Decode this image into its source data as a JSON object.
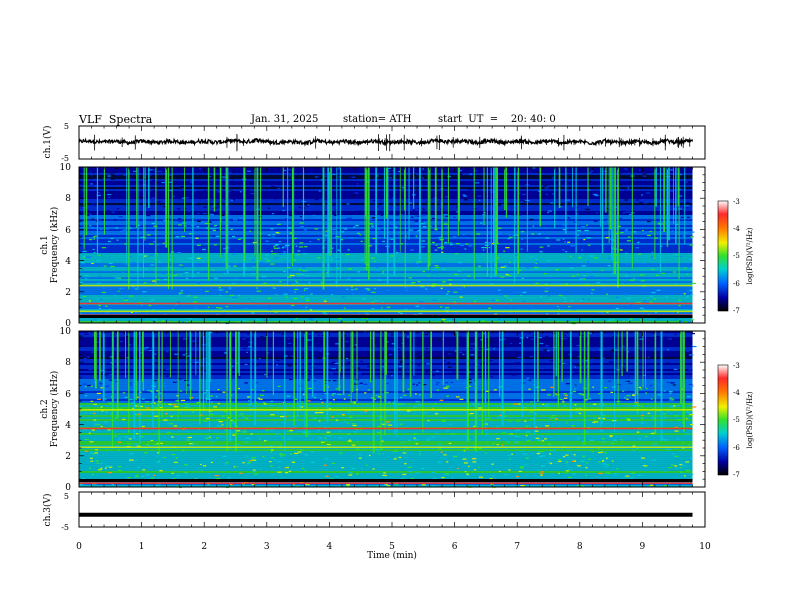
{
  "header": {
    "title": "VLF  Spectra",
    "date": "Jan. 31, 2025",
    "station": "station= ATH",
    "start_ut": "start  UT  =    20: 40: 0"
  },
  "colors": {
    "background": "#ffffff",
    "axis": "#000000",
    "trace": "#000000",
    "spectrogram_base": "#000a3a",
    "colormap": [
      "#ffffff",
      "#ff2a2a",
      "#ff7a00",
      "#f0f000",
      "#30e030",
      "#00d0d0",
      "#0060ff",
      "#0000a0",
      "#000000"
    ]
  },
  "chart_data": [
    {
      "id": "ch1-waveform",
      "type": "line",
      "ylabel": "ch.1(V)",
      "ylim": [
        -5,
        5
      ],
      "yticks": [
        "5",
        "-5"
      ],
      "xlim": [
        0,
        10
      ],
      "mean_value": 0.2,
      "noise_amplitude": 0.6
    },
    {
      "id": "ch1-spectrogram",
      "type": "heatmap",
      "ylabel_line1": "ch.1",
      "ylabel_line2": "Frequency  (kHz)",
      "ylim": [
        0,
        10
      ],
      "yticks": [
        "0",
        "2",
        "4",
        "6",
        "8",
        "10"
      ],
      "xlim": [
        0,
        10
      ],
      "colorbar": {
        "label": "log(PSD)(V²/Hz)",
        "range": [
          -7,
          -3
        ],
        "ticks": [
          "-3",
          "-4",
          "-5",
          "-6",
          "-7"
        ]
      }
    },
    {
      "id": "ch2-spectrogram",
      "type": "heatmap",
      "ylabel_line1": "ch.2",
      "ylabel_line2": "Frequency  (kHz)",
      "ylim": [
        0,
        10
      ],
      "yticks": [
        "0",
        "2",
        "4",
        "6",
        "8",
        "10"
      ],
      "xlim": [
        0,
        10
      ],
      "colorbar": {
        "label": "log(PSD)(V²/Hz)",
        "range": [
          -7,
          -3
        ],
        "ticks": [
          "-3",
          "-4",
          "-5",
          "-6",
          "-7"
        ]
      }
    },
    {
      "id": "ch3-waveform",
      "type": "line",
      "ylabel": "ch.3(V)",
      "ylim": [
        -5,
        5
      ],
      "yticks": [
        "5",
        "-5"
      ],
      "xlim": [
        0,
        10
      ],
      "mean_value": -1.5,
      "noise_amplitude": 0.15,
      "xlabel": "Time  (min)",
      "xticks": [
        "0",
        "1",
        "2",
        "3",
        "4",
        "5",
        "6",
        "7",
        "8",
        "9",
        "10"
      ]
    }
  ]
}
